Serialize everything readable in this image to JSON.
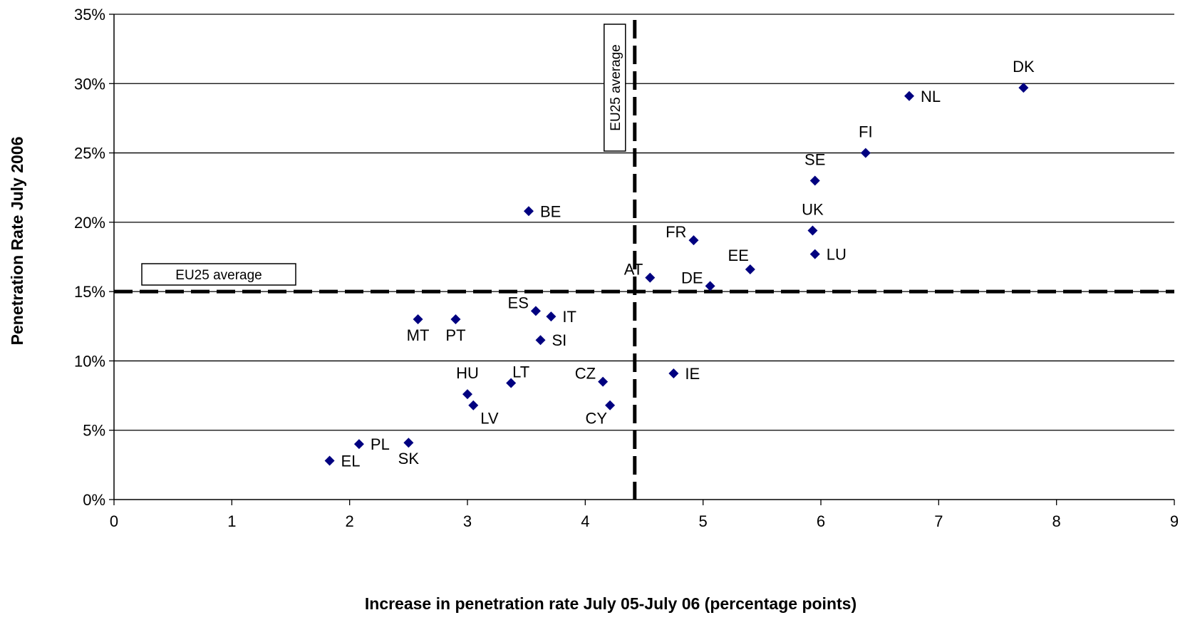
{
  "chart_data": {
    "type": "scatter",
    "xlabel": "Increase in penetration rate July 05-July 06 (percentage points)",
    "ylabel": "Penetration Rate July 2006",
    "xlim": [
      0,
      9
    ],
    "ylim": [
      0,
      35
    ],
    "x_ticks": [
      "0",
      "1",
      "2",
      "3",
      "4",
      "5",
      "6",
      "7",
      "8",
      "9"
    ],
    "y_ticks": [
      "0%",
      "5%",
      "10%",
      "15%",
      "20%",
      "25%",
      "30%",
      "35%"
    ],
    "grid": "horizontal",
    "legend": "none",
    "marker_color": "#000080",
    "reference_lines": [
      {
        "orientation": "horizontal",
        "value": 15,
        "label": "EU25 average",
        "style": "dashed"
      },
      {
        "orientation": "vertical",
        "value": 4.42,
        "label": "EU25 average",
        "style": "dashed"
      }
    ],
    "points": [
      {
        "label": "DK",
        "x": 7.72,
        "y": 29.7,
        "label_pos": "above"
      },
      {
        "label": "NL",
        "x": 6.75,
        "y": 29.1,
        "label_pos": "right"
      },
      {
        "label": "FI",
        "x": 6.38,
        "y": 25.0,
        "label_pos": "above"
      },
      {
        "label": "SE",
        "x": 5.95,
        "y": 23.0,
        "label_pos": "above"
      },
      {
        "label": "UK",
        "x": 5.93,
        "y": 19.4,
        "label_pos": "above"
      },
      {
        "label": "LU",
        "x": 5.95,
        "y": 17.7,
        "label_pos": "right"
      },
      {
        "label": "BE",
        "x": 3.52,
        "y": 20.8,
        "label_pos": "right"
      },
      {
        "label": "FR",
        "x": 4.92,
        "y": 18.7,
        "label_pos": "left"
      },
      {
        "label": "EE",
        "x": 5.4,
        "y": 16.6,
        "label_pos": "above-left"
      },
      {
        "label": "AT",
        "x": 4.55,
        "y": 16.0,
        "label_pos": "left"
      },
      {
        "label": "DE",
        "x": 5.06,
        "y": 15.4,
        "label_pos": "left"
      },
      {
        "label": "ES",
        "x": 3.58,
        "y": 13.6,
        "label_pos": "left"
      },
      {
        "label": "IT",
        "x": 3.71,
        "y": 13.2,
        "label_pos": "right"
      },
      {
        "label": "MT",
        "x": 2.58,
        "y": 13.0,
        "label_pos": "below"
      },
      {
        "label": "PT",
        "x": 2.9,
        "y": 13.0,
        "label_pos": "below"
      },
      {
        "label": "SI",
        "x": 3.62,
        "y": 11.5,
        "label_pos": "right"
      },
      {
        "label": "IE",
        "x": 4.75,
        "y": 9.1,
        "label_pos": "right"
      },
      {
        "label": "CZ",
        "x": 4.15,
        "y": 8.5,
        "label_pos": "left"
      },
      {
        "label": "LT",
        "x": 3.37,
        "y": 8.4,
        "label_pos": "above-right"
      },
      {
        "label": "HU",
        "x": 3.0,
        "y": 7.6,
        "label_pos": "above"
      },
      {
        "label": "LV",
        "x": 3.05,
        "y": 6.8,
        "label_pos": "below-right"
      },
      {
        "label": "CY",
        "x": 4.21,
        "y": 6.8,
        "label_pos": "below-left"
      },
      {
        "label": "PL",
        "x": 2.08,
        "y": 4.0,
        "label_pos": "right"
      },
      {
        "label": "SK",
        "x": 2.5,
        "y": 4.1,
        "label_pos": "below"
      },
      {
        "label": "EL",
        "x": 1.83,
        "y": 2.8,
        "label_pos": "right"
      }
    ]
  }
}
